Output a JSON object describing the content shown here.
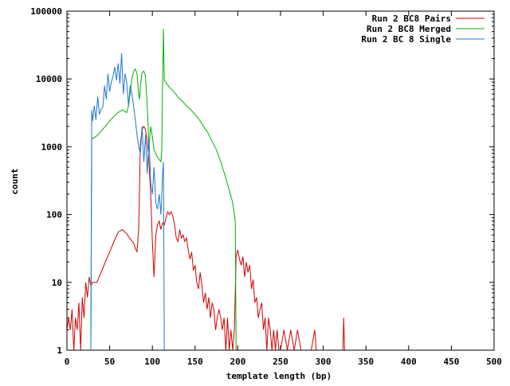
{
  "chart_data": {
    "type": "line",
    "title": "",
    "xlabel": "template length (bp)",
    "ylabel": "count",
    "xlim": [
      0,
      500
    ],
    "ylim": [
      1,
      100000
    ],
    "yscale": "log",
    "grid": false,
    "legend_position": "top-right",
    "x_ticks": [
      0,
      50,
      100,
      150,
      200,
      250,
      300,
      350,
      400,
      450,
      500
    ],
    "y_ticks": [
      1,
      10,
      100,
      1000,
      10000,
      100000
    ],
    "series": [
      {
        "name": "Run 2 BC8 Pairs",
        "color": "#d40000",
        "points": [
          [
            0,
            2
          ],
          [
            2,
            3
          ],
          [
            4,
            2
          ],
          [
            6,
            4
          ],
          [
            8,
            1
          ],
          [
            10,
            3
          ],
          [
            12,
            2
          ],
          [
            14,
            5
          ],
          [
            16,
            1
          ],
          [
            18,
            6
          ],
          [
            20,
            3
          ],
          [
            22,
            10
          ],
          [
            24,
            6
          ],
          [
            26,
            12
          ],
          [
            28,
            9
          ],
          [
            30,
            10
          ],
          [
            35,
            10
          ],
          [
            40,
            14
          ],
          [
            45,
            20
          ],
          [
            50,
            28
          ],
          [
            55,
            40
          ],
          [
            60,
            55
          ],
          [
            65,
            60
          ],
          [
            70,
            52
          ],
          [
            75,
            42
          ],
          [
            78,
            38
          ],
          [
            80,
            32
          ],
          [
            82,
            28
          ],
          [
            84,
            60
          ],
          [
            86,
            1100
          ],
          [
            88,
            1800
          ],
          [
            90,
            2000
          ],
          [
            92,
            1800
          ],
          [
            94,
            1200
          ],
          [
            96,
            600
          ],
          [
            98,
            200
          ],
          [
            100,
            40
          ],
          [
            102,
            12
          ],
          [
            104,
            50
          ],
          [
            106,
            70
          ],
          [
            108,
            80
          ],
          [
            110,
            60
          ],
          [
            112,
            75
          ],
          [
            114,
            70
          ],
          [
            116,
            90
          ],
          [
            118,
            110
          ],
          [
            120,
            100
          ],
          [
            122,
            110
          ],
          [
            124,
            95
          ],
          [
            126,
            70
          ],
          [
            128,
            45
          ],
          [
            130,
            40
          ],
          [
            132,
            60
          ],
          [
            134,
            45
          ],
          [
            136,
            50
          ],
          [
            138,
            40
          ],
          [
            140,
            45
          ],
          [
            142,
            30
          ],
          [
            144,
            22
          ],
          [
            146,
            28
          ],
          [
            148,
            15
          ],
          [
            150,
            18
          ],
          [
            152,
            10
          ],
          [
            154,
            8
          ],
          [
            156,
            14
          ],
          [
            158,
            9
          ],
          [
            160,
            5
          ],
          [
            162,
            7
          ],
          [
            164,
            4
          ],
          [
            166,
            6
          ],
          [
            168,
            3
          ],
          [
            170,
            5
          ],
          [
            172,
            4
          ],
          [
            174,
            2
          ],
          [
            176,
            3
          ],
          [
            178,
            4
          ],
          [
            180,
            3
          ],
          [
            182,
            2
          ],
          [
            184,
            3
          ],
          [
            186,
            1
          ],
          [
            188,
            3
          ],
          [
            190,
            1
          ],
          [
            192,
            2
          ],
          [
            194,
            1
          ],
          [
            196,
            2
          ],
          [
            198,
            25
          ],
          [
            200,
            30
          ],
          [
            202,
            22
          ],
          [
            204,
            18
          ],
          [
            206,
            24
          ],
          [
            208,
            12
          ],
          [
            210,
            20
          ],
          [
            212,
            14
          ],
          [
            214,
            18
          ],
          [
            216,
            8
          ],
          [
            218,
            11
          ],
          [
            220,
            5
          ],
          [
            222,
            6
          ],
          [
            224,
            3
          ],
          [
            226,
            4
          ],
          [
            228,
            5
          ],
          [
            230,
            2
          ],
          [
            232,
            3
          ],
          [
            234,
            1
          ],
          [
            236,
            3
          ],
          [
            238,
            2
          ],
          [
            240,
            1
          ],
          [
            242,
            2
          ],
          [
            244,
            1
          ],
          [
            246,
            2
          ],
          [
            248,
            1
          ],
          [
            250,
            1
          ],
          [
            254,
            2
          ],
          [
            258,
            1
          ],
          [
            262,
            2
          ],
          [
            266,
            1
          ],
          [
            270,
            2
          ],
          [
            274,
            1
          ],
          [
            280,
            1
          ],
          [
            286,
            1
          ],
          [
            290,
            2
          ],
          [
            292,
            1
          ],
          [
            296,
            1
          ],
          [
            300,
            1
          ],
          [
            323,
            1
          ],
          [
            324,
            3
          ],
          [
            325,
            1
          ]
        ]
      },
      {
        "name": "Run 2 BC8 Merged",
        "color": "#00b000",
        "points": [
          [
            28,
            1
          ],
          [
            29,
            1300
          ],
          [
            35,
            1450
          ],
          [
            40,
            1700
          ],
          [
            45,
            2000
          ],
          [
            50,
            2400
          ],
          [
            55,
            2800
          ],
          [
            60,
            3200
          ],
          [
            65,
            3500
          ],
          [
            68,
            3300
          ],
          [
            70,
            3200
          ],
          [
            72,
            4000
          ],
          [
            74,
            6000
          ],
          [
            76,
            10000
          ],
          [
            78,
            13000
          ],
          [
            80,
            14000
          ],
          [
            82,
            12000
          ],
          [
            84,
            6000
          ],
          [
            85,
            5000
          ],
          [
            86,
            8000
          ],
          [
            88,
            12500
          ],
          [
            90,
            13000
          ],
          [
            92,
            11000
          ],
          [
            94,
            4000
          ],
          [
            96,
            1000
          ],
          [
            98,
            2000
          ],
          [
            100,
            1400
          ],
          [
            102,
            900
          ],
          [
            104,
            800
          ],
          [
            106,
            700
          ],
          [
            108,
            650
          ],
          [
            110,
            600
          ],
          [
            111,
            900
          ],
          [
            112,
            10000
          ],
          [
            113,
            55000
          ],
          [
            114,
            9500
          ],
          [
            116,
            8800
          ],
          [
            120,
            7500
          ],
          [
            125,
            6500
          ],
          [
            130,
            5400
          ],
          [
            135,
            4700
          ],
          [
            140,
            4000
          ],
          [
            145,
            3500
          ],
          [
            150,
            3000
          ],
          [
            155,
            2500
          ],
          [
            160,
            2000
          ],
          [
            165,
            1600
          ],
          [
            170,
            1200
          ],
          [
            175,
            900
          ],
          [
            180,
            600
          ],
          [
            185,
            380
          ],
          [
            190,
            230
          ],
          [
            194,
            150
          ],
          [
            196,
            100
          ],
          [
            197,
            80
          ],
          [
            198,
            1
          ]
        ]
      },
      {
        "name": "Run 2 BC 8 Single",
        "color": "#1f78d4",
        "points": [
          [
            28,
            1
          ],
          [
            29,
            3500
          ],
          [
            30,
            2400
          ],
          [
            32,
            4000
          ],
          [
            34,
            2500
          ],
          [
            36,
            5500
          ],
          [
            38,
            3000
          ],
          [
            40,
            3600
          ],
          [
            42,
            3800
          ],
          [
            44,
            8000
          ],
          [
            46,
            5000
          ],
          [
            48,
            12000
          ],
          [
            50,
            6500
          ],
          [
            52,
            9000
          ],
          [
            54,
            11000
          ],
          [
            56,
            15000
          ],
          [
            58,
            9500
          ],
          [
            60,
            17000
          ],
          [
            62,
            8500
          ],
          [
            64,
            24000
          ],
          [
            66,
            6000
          ],
          [
            68,
            12000
          ],
          [
            70,
            9000
          ],
          [
            72,
            4000
          ],
          [
            74,
            8000
          ],
          [
            76,
            6000
          ],
          [
            78,
            4000
          ],
          [
            80,
            2500
          ],
          [
            82,
            1500
          ],
          [
            84,
            1000
          ],
          [
            86,
            800
          ],
          [
            88,
            2000
          ],
          [
            90,
            600
          ],
          [
            92,
            1500
          ],
          [
            94,
            400
          ],
          [
            96,
            1300
          ],
          [
            98,
            300
          ],
          [
            100,
            200
          ],
          [
            102,
            500
          ],
          [
            104,
            150
          ],
          [
            106,
            120
          ],
          [
            108,
            200
          ],
          [
            110,
            100
          ],
          [
            112,
            400
          ],
          [
            113,
            600
          ],
          [
            114,
            1
          ]
        ]
      }
    ]
  }
}
